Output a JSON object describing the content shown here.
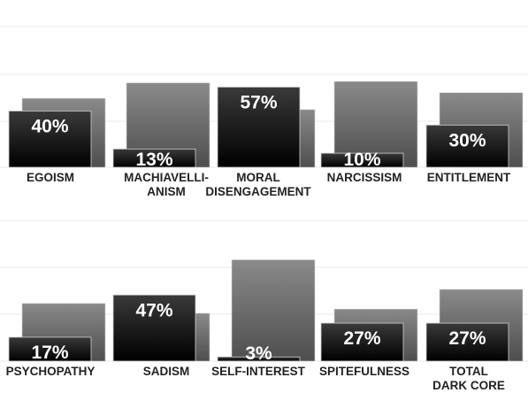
{
  "chart_data": [
    {
      "type": "bar",
      "categories": [
        "EGOISM",
        "MACHIAVELLI-\nANISM",
        "MORAL\nDISENGAGEMENT",
        "NARCISSISM",
        "ENTITLEMENT"
      ],
      "series": [
        {
          "values": [
            49,
            60,
            41,
            61,
            53
          ]
        },
        {
          "values": [
            40,
            13,
            57,
            10,
            30
          ]
        }
      ],
      "value_labels": [
        "40%",
        "13%",
        "57%",
        "10%",
        "30%"
      ],
      "ylim": [
        0,
        100
      ],
      "grid": true,
      "colors": {
        "back": "#6b6b6b",
        "front": "#111111",
        "grid": "#e8e8e8",
        "label": "#222222"
      }
    },
    {
      "type": "bar",
      "categories": [
        "PSYCHOPATHY",
        "SADISM",
        "SELF-INTEREST",
        "SPITEFULNESS",
        "TOTAL\nDARK CORE"
      ],
      "series": [
        {
          "values": [
            41,
            34,
            72,
            37,
            51
          ]
        },
        {
          "values": [
            17,
            47,
            3,
            27,
            27
          ]
        }
      ],
      "value_labels": [
        "17%",
        "47%",
        "3%",
        "27%",
        "27%"
      ],
      "ylim": [
        0,
        100
      ],
      "grid": true,
      "colors": {
        "back": "#6b6b6b",
        "front": "#111111",
        "grid": "#e8e8e8",
        "label": "#222222"
      }
    }
  ]
}
